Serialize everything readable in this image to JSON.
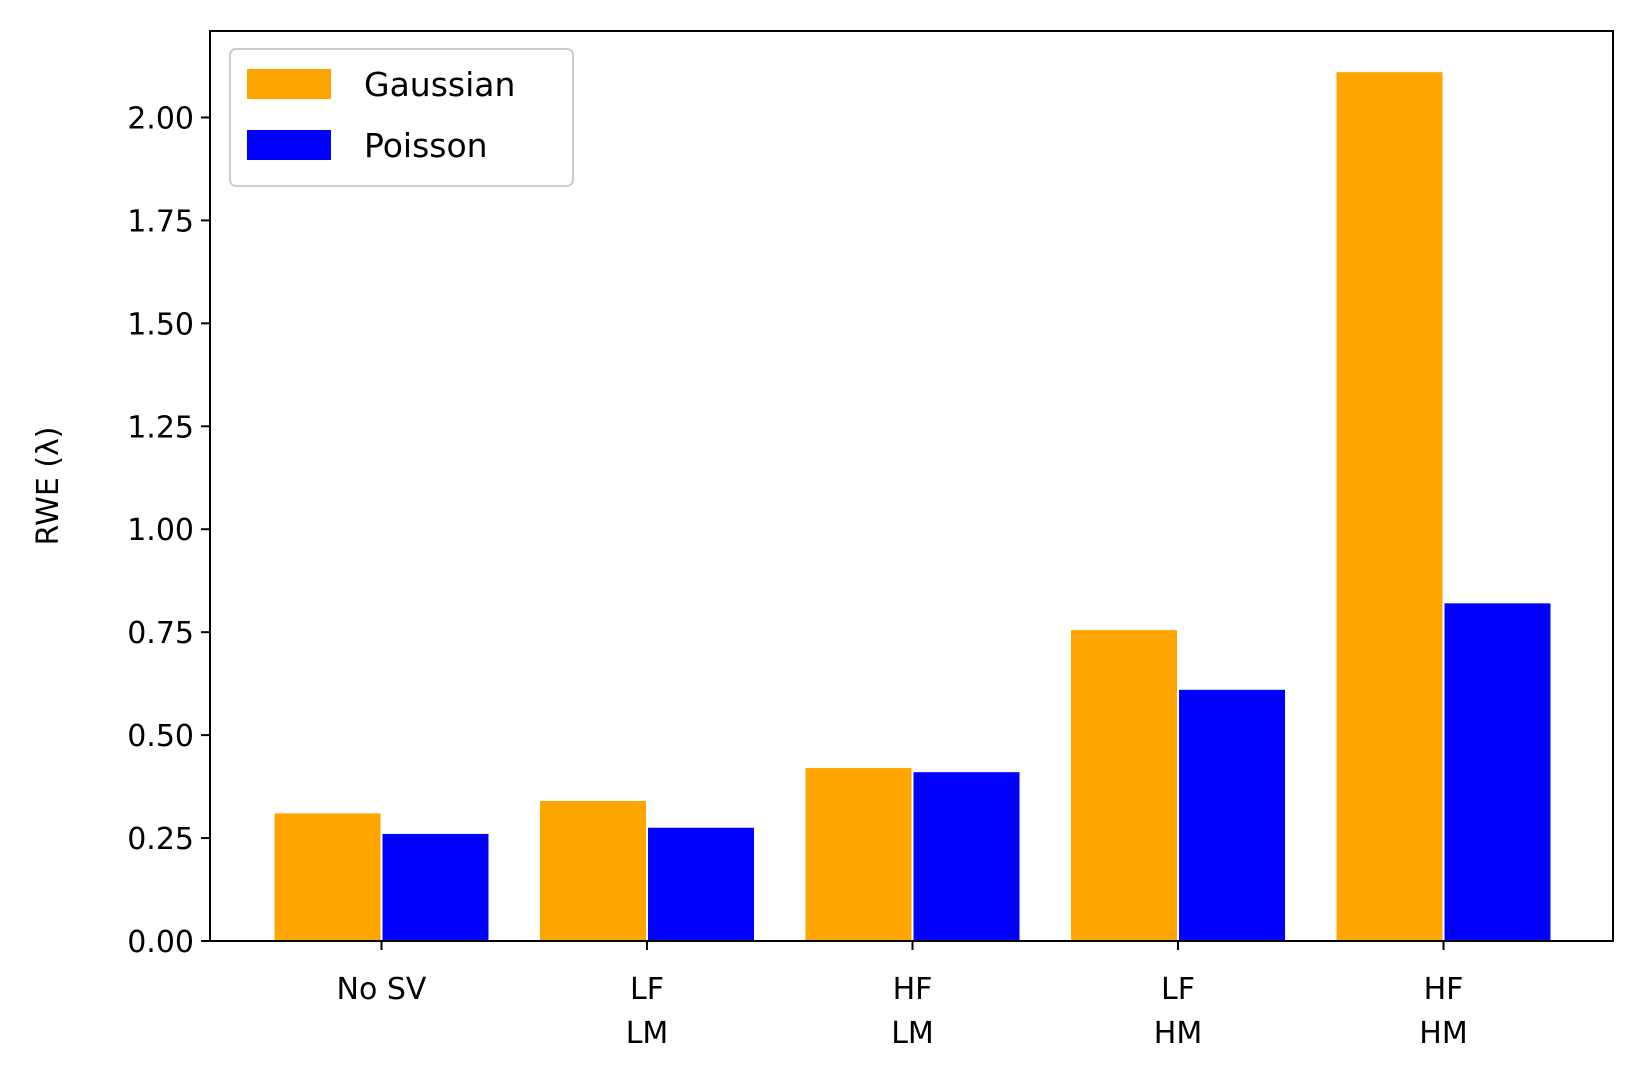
{
  "chart_data": {
    "type": "bar",
    "title": "",
    "xlabel": "",
    "ylabel": "RWE (λ)",
    "ylim": [
      0,
      2.21
    ],
    "yticks": [
      "0.00",
      "0.25",
      "0.50",
      "0.75",
      "1.00",
      "1.25",
      "1.50",
      "1.75",
      "2.00"
    ],
    "ytick_values": [
      0,
      0.25,
      0.5,
      0.75,
      1.0,
      1.25,
      1.5,
      1.75,
      2.0
    ],
    "categories": [
      [
        "No SV"
      ],
      [
        "LF",
        "LM"
      ],
      [
        "HF",
        "LM"
      ],
      [
        "LF",
        "HM"
      ],
      [
        "HF",
        "HM"
      ]
    ],
    "series": [
      {
        "name": "Gaussian",
        "color": "#ffa500",
        "values": [
          0.31,
          0.34,
          0.42,
          0.755,
          2.11
        ]
      },
      {
        "name": "Poisson",
        "color": "#0000ff",
        "values": [
          0.26,
          0.275,
          0.41,
          0.61,
          0.82
        ]
      }
    ],
    "grid": false,
    "legend_position": "top-left"
  }
}
